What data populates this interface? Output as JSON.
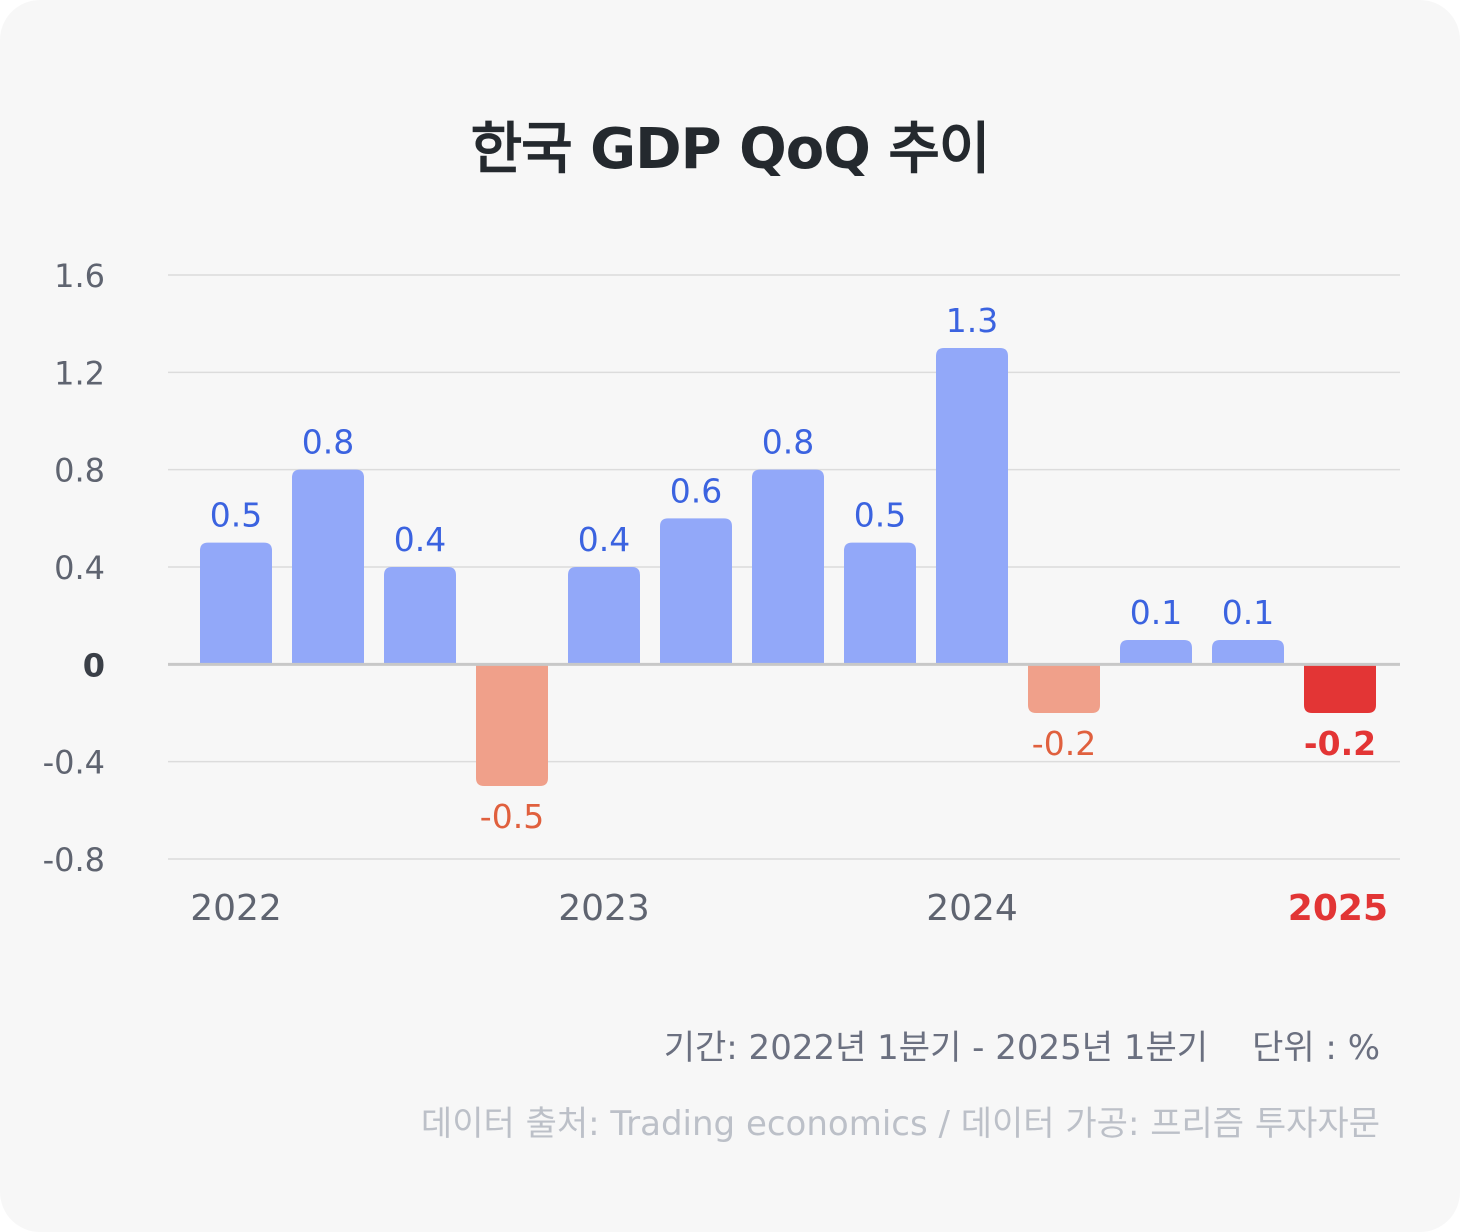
{
  "colors": {
    "positive": "#92a8f9",
    "positive_label": "#3b63e0",
    "negative": "#f0a08a",
    "negative_label": "#e0603e",
    "highlight": "#e33535",
    "grid": "#dcdcdc",
    "zero_line": "#c8c8c8"
  },
  "chart_data": {
    "type": "bar",
    "title": "한국 GDP QoQ 추이",
    "categories": [
      "2022 Q1",
      "2022 Q2",
      "2022 Q3",
      "2022 Q4",
      "2023 Q1",
      "2023 Q2",
      "2023 Q3",
      "2023 Q4",
      "2024 Q1",
      "2024 Q2",
      "2024 Q3",
      "2024 Q4",
      "2025 Q1"
    ],
    "values": [
      0.5,
      0.8,
      0.4,
      -0.5,
      0.4,
      0.6,
      0.8,
      0.5,
      1.3,
      -0.2,
      0.1,
      0.1,
      -0.2
    ],
    "value_labels": [
      "0.5",
      "0.8",
      "0.4",
      "-0.5",
      "0.4",
      "0.6",
      "0.8",
      "0.5",
      "1.3",
      "-0.2",
      "0.1",
      "0.1",
      "-0.2"
    ],
    "highlight_index": 12,
    "ylim": [
      -0.8,
      1.6
    ],
    "y_ticks": [
      1.6,
      1.2,
      0.8,
      0.4,
      0,
      -0.4,
      -0.8
    ],
    "y_tick_labels": [
      "1.6",
      "1.2",
      "0.8",
      "0.4",
      "0",
      "-0.4",
      "-0.8"
    ],
    "year_labels": [
      {
        "text": "2022",
        "category_index": 0,
        "current": false
      },
      {
        "text": "2023",
        "category_index": 4,
        "current": false
      },
      {
        "text": "2024",
        "category_index": 8,
        "current": false
      },
      {
        "text": "2025",
        "category_index": 12,
        "current": true
      }
    ],
    "grid": true
  },
  "footer": {
    "period": "기간: 2022년 1분기 - 2025년 1분기",
    "unit": "단위 : %",
    "source": "데이터 출처: Trading economics / 데이터 가공: 프리즘 투자자문"
  }
}
